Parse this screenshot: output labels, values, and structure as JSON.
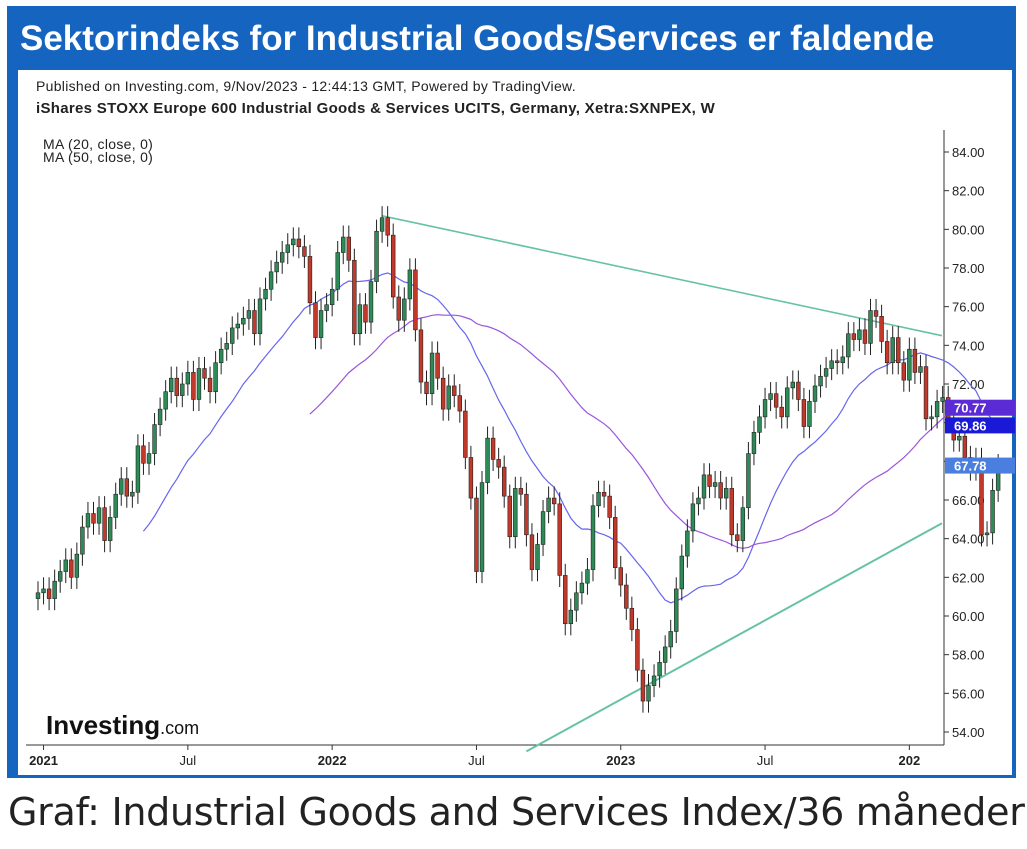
{
  "banner": {
    "title": "Sektorindeks for Industrial Goods/Services er faldende"
  },
  "header": {
    "published": "Published on Investing.com, 9/Nov/2023 - 12:44:13 GMT, Powered by TradingView.",
    "instrument": "iShares STOXX Europe 600 Industrial Goods & Services UCITS, Germany, Xetra:SXNPEX, W"
  },
  "indicators": [
    "MA (20, close, 0)",
    "MA (50, close, 0)"
  ],
  "logo": {
    "main": "Investing",
    "suffix": ".com"
  },
  "caption": "Graf: Industrial Goods and Services Index/36 måneder",
  "colors": {
    "up": "#2e8b57",
    "down": "#c0392b",
    "ma20": "#6666ee",
    "ma50": "#9955dd",
    "trendline": "#66c2a5",
    "badge_ma20": "#5b2bd6",
    "badge_ma50": "#1a1ad6",
    "badge_last": "#4a7fe0",
    "frame": "#1565c0"
  },
  "chart_data": {
    "type": "candlestick",
    "interval": "weekly",
    "ylim": [
      53,
      85
    ],
    "yticks": [
      "54.00",
      "56.00",
      "58.00",
      "60.00",
      "62.00",
      "64.00",
      "66.00",
      "68.00",
      "70.00",
      "72.00",
      "74.00",
      "76.00",
      "78.00",
      "80.00",
      "82.00",
      "84.00"
    ],
    "xticks": [
      {
        "label": "2021",
        "bold": true,
        "week": 1
      },
      {
        "label": "Jul",
        "bold": false,
        "week": 27
      },
      {
        "label": "2022",
        "bold": true,
        "week": 53
      },
      {
        "label": "Jul",
        "bold": false,
        "week": 79
      },
      {
        "label": "2023",
        "bold": true,
        "week": 105
      },
      {
        "label": "Jul",
        "bold": false,
        "week": 131
      },
      {
        "label": "202",
        "bold": true,
        "week": 157
      }
    ],
    "closes": [
      61.2,
      61.4,
      60.9,
      61.8,
      62.3,
      62.9,
      62.0,
      63.2,
      64.6,
      65.3,
      64.8,
      65.6,
      63.9,
      65.1,
      66.3,
      67.1,
      66.2,
      66.4,
      68.8,
      67.9,
      68.4,
      69.9,
      70.7,
      71.6,
      72.3,
      71.4,
      72.0,
      72.6,
      71.2,
      72.8,
      72.3,
      71.6,
      73.1,
      73.8,
      74.1,
      74.9,
      75.1,
      75.4,
      75.8,
      74.6,
      76.4,
      76.9,
      77.8,
      78.3,
      78.8,
      79.2,
      79.5,
      79.1,
      78.6,
      76.2,
      74.4,
      75.8,
      76.1,
      76.9,
      78.8,
      79.6,
      78.4,
      74.6,
      76.1,
      75.2,
      77.3,
      79.9,
      80.6,
      79.7,
      76.5,
      75.3,
      76.4,
      77.9,
      74.8,
      72.1,
      71.5,
      73.6,
      72.3,
      70.7,
      71.9,
      71.4,
      70.6,
      68.2,
      66.1,
      62.3,
      66.9,
      69.2,
      68.1,
      67.7,
      66.2,
      64.1,
      66.6,
      66.3,
      64.2,
      62.4,
      63.7,
      65.4,
      66.1,
      65.8,
      62.1,
      59.6,
      60.3,
      61.2,
      61.7,
      62.4,
      65.7,
      66.4,
      66.2,
      65.1,
      62.5,
      61.6,
      60.4,
      59.3,
      57.2,
      55.6,
      56.4,
      56.9,
      57.6,
      58.4,
      59.2,
      61.4,
      63.1,
      64.4,
      65.8,
      66.1,
      67.3,
      66.7,
      66.9,
      66.1,
      66.6,
      64.2,
      63.9,
      65.6,
      68.4,
      69.5,
      70.3,
      71.2,
      71.5,
      70.8,
      70.3,
      71.8,
      72.1,
      71.2,
      69.8,
      71.1,
      71.9,
      72.4,
      72.8,
      73.2,
      73.1,
      73.4,
      74.6,
      74.3,
      74.8,
      74.1,
      75.8,
      75.5,
      74.2,
      73.1,
      74.4,
      73.1,
      72.2,
      73.8,
      72.6,
      72.9,
      70.2,
      70.3,
      71.1,
      71.3,
      70.2,
      69.1,
      69.3,
      68.2,
      67.6,
      68.1,
      64.2,
      64.3,
      66.5,
      67.78
    ]
  }
}
